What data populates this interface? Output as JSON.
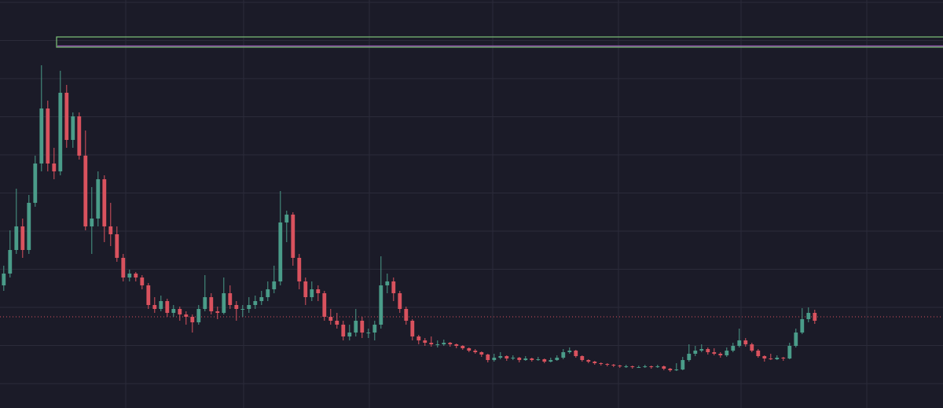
{
  "chart_data": {
    "type": "candlestick",
    "up_color": "#4a9c89",
    "down_color": "#d9525e",
    "grid": true,
    "grid_color": "#2b2b3a",
    "xlim": [
      -0.6,
      149.4
    ],
    "xticks": [
      19.4,
      38.15,
      58.15,
      77.775,
      97.775,
      117.275,
      137.275
    ],
    "ylim": [
      -31,
      488
    ],
    "yticks": [
      0,
      48.5,
      97,
      145.5,
      194,
      242.5,
      291,
      339.5,
      388,
      436.5,
      485
    ],
    "price_line": 85,
    "zone": {
      "start": 8.4,
      "top": 441,
      "bottom": 428,
      "border_color": "#7fc47a",
      "inner_color": "#9b59b6"
    },
    "ohlc": [
      [
        125,
        150,
        118,
        140
      ],
      [
        140,
        195,
        135,
        170
      ],
      [
        170,
        248,
        165,
        200
      ],
      [
        200,
        210,
        160,
        170
      ],
      [
        170,
        240,
        165,
        230
      ],
      [
        230,
        290,
        225,
        280
      ],
      [
        280,
        405,
        270,
        350
      ],
      [
        350,
        360,
        270,
        280
      ],
      [
        280,
        300,
        260,
        270
      ],
      [
        270,
        398,
        265,
        370
      ],
      [
        370,
        380,
        300,
        310
      ],
      [
        310,
        345,
        300,
        340
      ],
      [
        340,
        345,
        285,
        290
      ],
      [
        290,
        322,
        195,
        200
      ],
      [
        200,
        250,
        165,
        210
      ],
      [
        210,
        270,
        200,
        260
      ],
      [
        260,
        265,
        180,
        200
      ],
      [
        200,
        230,
        175,
        190
      ],
      [
        190,
        200,
        155,
        160
      ],
      [
        160,
        165,
        130,
        135
      ],
      [
        135,
        145,
        130,
        140
      ],
      [
        140,
        142,
        130,
        135
      ],
      [
        135,
        138,
        120,
        125
      ],
      [
        125,
        128,
        95,
        100
      ],
      [
        100,
        110,
        90,
        95
      ],
      [
        95,
        112,
        92,
        105
      ],
      [
        105,
        108,
        85,
        90
      ],
      [
        90,
        100,
        85,
        95
      ],
      [
        95,
        98,
        80,
        88
      ],
      [
        88,
        92,
        75,
        85
      ],
      [
        85,
        88,
        65,
        78
      ],
      [
        78,
        100,
        75,
        95
      ],
      [
        95,
        138,
        92,
        110
      ],
      [
        110,
        115,
        88,
        92
      ],
      [
        92,
        98,
        82,
        90
      ],
      [
        90,
        135,
        88,
        115
      ],
      [
        115,
        125,
        95,
        100
      ],
      [
        100,
        105,
        80,
        95
      ],
      [
        95,
        100,
        85,
        95
      ],
      [
        95,
        110,
        90,
        100
      ],
      [
        100,
        112,
        95,
        105
      ],
      [
        105,
        118,
        100,
        110
      ],
      [
        110,
        130,
        105,
        120
      ],
      [
        120,
        150,
        115,
        130
      ],
      [
        130,
        245,
        125,
        205
      ],
      [
        205,
        220,
        180,
        215
      ],
      [
        215,
        218,
        150,
        160
      ],
      [
        160,
        165,
        120,
        130
      ],
      [
        130,
        135,
        100,
        110
      ],
      [
        110,
        130,
        105,
        120
      ],
      [
        120,
        125,
        105,
        115
      ],
      [
        115,
        118,
        80,
        85
      ],
      [
        85,
        95,
        75,
        80
      ],
      [
        80,
        90,
        70,
        75
      ],
      [
        75,
        80,
        55,
        60
      ],
      [
        60,
        75,
        55,
        65
      ],
      [
        65,
        95,
        60,
        80
      ],
      [
        80,
        85,
        58,
        65
      ],
      [
        65,
        70,
        58,
        65
      ],
      [
        65,
        80,
        55,
        75
      ],
      [
        75,
        162,
        70,
        125
      ],
      [
        125,
        140,
        115,
        130
      ],
      [
        130,
        135,
        105,
        115
      ],
      [
        115,
        118,
        90,
        95
      ],
      [
        95,
        98,
        75,
        80
      ],
      [
        80,
        82,
        55,
        60
      ],
      [
        60,
        62,
        50,
        55
      ],
      [
        55,
        58,
        48,
        52
      ],
      [
        52,
        60,
        47,
        50
      ],
      [
        50,
        55,
        46,
        50
      ],
      [
        50,
        56,
        48,
        52
      ],
      [
        52,
        53,
        47,
        50
      ],
      [
        50,
        51,
        45,
        48
      ],
      [
        48,
        49,
        43,
        45
      ],
      [
        45,
        46,
        40,
        42
      ],
      [
        42,
        44,
        38,
        40
      ],
      [
        40,
        41,
        34,
        37
      ],
      [
        37,
        38,
        27,
        30
      ],
      [
        30,
        38,
        28,
        33
      ],
      [
        33,
        40,
        31,
        35
      ],
      [
        35,
        36,
        29,
        32
      ],
      [
        32,
        36,
        30,
        33
      ],
      [
        33,
        34,
        27,
        30
      ],
      [
        30,
        35,
        29,
        32
      ],
      [
        32,
        33,
        28,
        30
      ],
      [
        30,
        34,
        29,
        31
      ],
      [
        31,
        32,
        26,
        28
      ],
      [
        28,
        33,
        27,
        30
      ],
      [
        30,
        36,
        29,
        33
      ],
      [
        33,
        44,
        31,
        40
      ],
      [
        40,
        46,
        38,
        42
      ],
      [
        42,
        43,
        33,
        35
      ],
      [
        35,
        36,
        28,
        30
      ],
      [
        30,
        31,
        26,
        28
      ],
      [
        28,
        29,
        24,
        26
      ],
      [
        26,
        27,
        23,
        25
      ],
      [
        25,
        26,
        22,
        24
      ],
      [
        24,
        25,
        21,
        23
      ],
      [
        23,
        24,
        20,
        22
      ],
      [
        22,
        24,
        20,
        22
      ],
      [
        22,
        23,
        19,
        21
      ],
      [
        21,
        23,
        20,
        21
      ],
      [
        21,
        24,
        20,
        22
      ],
      [
        22,
        23,
        19,
        21
      ],
      [
        21,
        24,
        20,
        22
      ],
      [
        22,
        23,
        17,
        19
      ],
      [
        19,
        20,
        15,
        17
      ],
      [
        17,
        26,
        16,
        18
      ],
      [
        18,
        34,
        17,
        30
      ],
      [
        30,
        50,
        28,
        38
      ],
      [
        38,
        48,
        35,
        42
      ],
      [
        42,
        50,
        40,
        44
      ],
      [
        44,
        46,
        37,
        40
      ],
      [
        40,
        45,
        36,
        38
      ],
      [
        38,
        40,
        33,
        36
      ],
      [
        36,
        46,
        34,
        42
      ],
      [
        42,
        52,
        40,
        48
      ],
      [
        48,
        70,
        46,
        55
      ],
      [
        55,
        58,
        47,
        50
      ],
      [
        50,
        52,
        40,
        42
      ],
      [
        42,
        44,
        33,
        35
      ],
      [
        35,
        36,
        28,
        32
      ],
      [
        32,
        38,
        30,
        31
      ],
      [
        31,
        36,
        30,
        33
      ],
      [
        33,
        34,
        29,
        32
      ],
      [
        32,
        52,
        31,
        48
      ],
      [
        48,
        70,
        46,
        65
      ],
      [
        65,
        96,
        63,
        82
      ],
      [
        82,
        97,
        78,
        90
      ],
      [
        90,
        94,
        76,
        80
      ]
    ]
  }
}
